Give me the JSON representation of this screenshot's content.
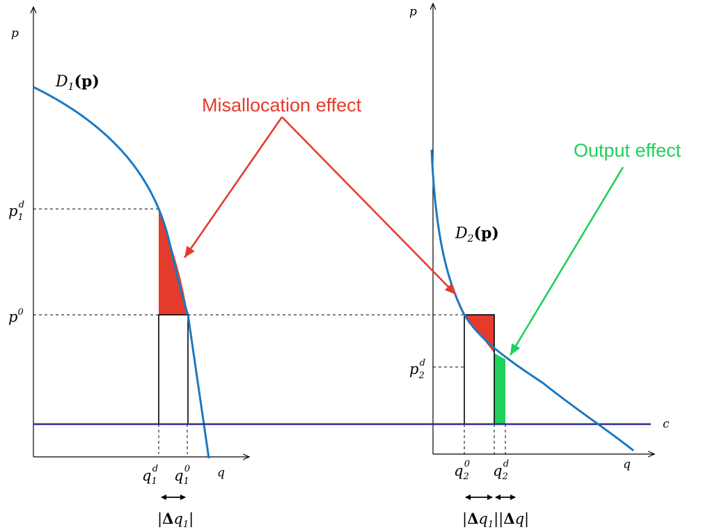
{
  "colors": {
    "demand_curve": "#1a78c2",
    "cost_line": "#2b2b8f",
    "misallocation": "#e53b2c",
    "output": "#1ed15a",
    "axis": "#000000"
  },
  "annotations": {
    "misallocation": "Misallocation effect",
    "output": "Output effect"
  },
  "left_panel": {
    "axis_y": "p",
    "axis_x": "q",
    "curve_label": {
      "name": "D",
      "sub": "1",
      "arg": "(p)"
    },
    "price_high": {
      "base": "p",
      "sub": "1",
      "sup": "d"
    },
    "price_base": {
      "base": "p",
      "sup": "0"
    },
    "qty_low": {
      "base": "q",
      "sub": "1",
      "sup": "d"
    },
    "qty_high": {
      "base": "q",
      "sub": "1",
      "sup": "0"
    },
    "delta": {
      "sym": "Δ",
      "base": "q",
      "sub": "1"
    }
  },
  "right_panel": {
    "axis_y": "p",
    "axis_x": "q",
    "cost_label": "c",
    "curve_label": {
      "name": "D",
      "sub": "2",
      "arg": "(p)"
    },
    "price_low": {
      "base": "p",
      "sub": "2",
      "sup": "d"
    },
    "qty_low": {
      "base": "q",
      "sub": "2",
      "sup": "0"
    },
    "qty_high": {
      "base": "q",
      "sub": "2",
      "sup": "d"
    },
    "delta1": {
      "sym": "Δ",
      "base": "q",
      "sub": "1"
    },
    "delta2": {
      "sym": "Δ",
      "base": "q"
    }
  }
}
